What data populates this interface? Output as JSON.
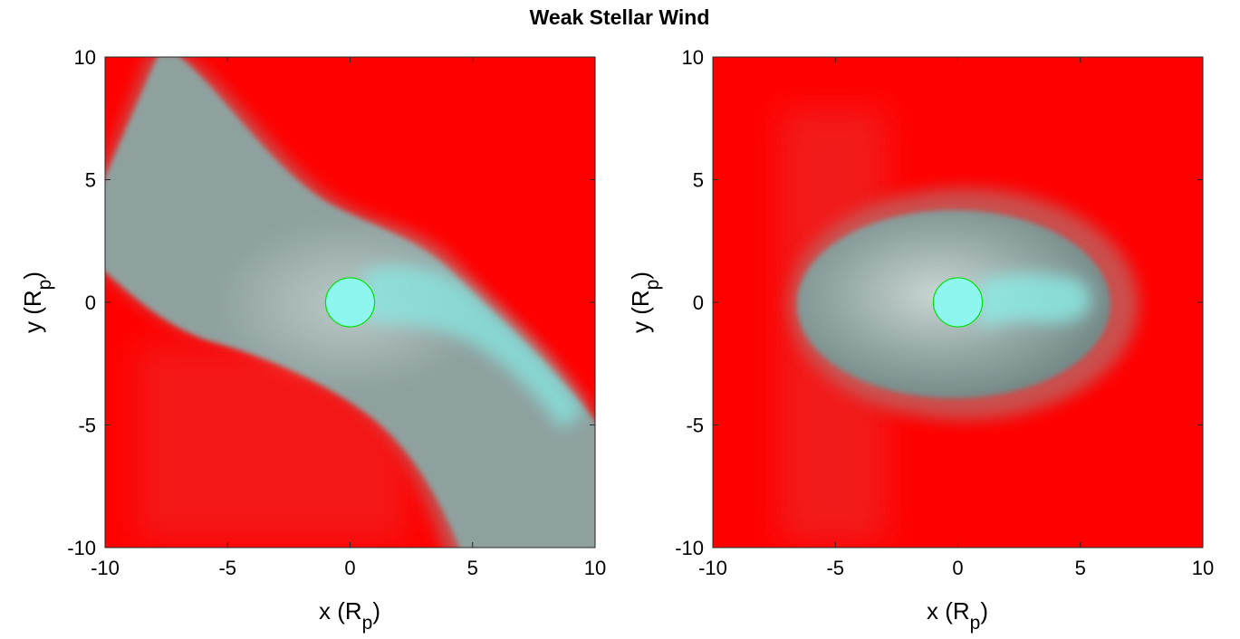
{
  "figure_title": "Weak Stellar Wind",
  "chart_data": [
    {
      "type": "heatmap",
      "panel": "left",
      "xlabel": {
        "main": "x (R",
        "sub": "p",
        "close": ")"
      },
      "ylabel": {
        "main": "y (R",
        "sub": "p",
        "close": ")"
      },
      "xlim": [
        -10,
        10
      ],
      "ylim": [
        -10,
        10
      ],
      "xticks": [
        -10,
        -5,
        0,
        5,
        10
      ],
      "yticks": [
        -10,
        -5,
        0,
        5,
        10
      ],
      "xtick_labels": [
        "-10",
        "-5",
        "0",
        "5",
        "10"
      ],
      "ytick_labels": [
        "-10",
        "-5",
        "0",
        "5",
        "10"
      ],
      "grid": false,
      "planet": {
        "x": 0,
        "y": 0,
        "r": 1,
        "color": "#00e000"
      },
      "tail_direction": "curved-sw-ne",
      "colors": {
        "background": "#ff0000",
        "gas": "#8a9e9c",
        "dense": "#7ff2ec"
      }
    },
    {
      "type": "heatmap",
      "panel": "right",
      "xlabel": {
        "main": "x (R",
        "sub": "p",
        "close": ")"
      },
      "ylabel": {
        "main": "y (R",
        "sub": "p",
        "close": ")"
      },
      "xlim": [
        -10,
        10
      ],
      "ylim": [
        -10,
        10
      ],
      "xticks": [
        -10,
        -5,
        0,
        5,
        10
      ],
      "yticks": [
        -10,
        -5,
        0,
        5,
        10
      ],
      "xtick_labels": [
        "-10",
        "-5",
        "0",
        "5",
        "10"
      ],
      "ytick_labels": [
        "-10",
        "-5",
        "0",
        "5",
        "10"
      ],
      "grid": false,
      "planet": {
        "x": 0,
        "y": 0,
        "r": 1,
        "color": "#00e000"
      },
      "envelope": {
        "x_range": [
          -6.5,
          6.3
        ],
        "y_range": [
          -3.9,
          3.8
        ]
      },
      "colors": {
        "background": "#ff0000",
        "gas": "#8a9e9c",
        "dense": "#7ff2ec"
      }
    }
  ]
}
